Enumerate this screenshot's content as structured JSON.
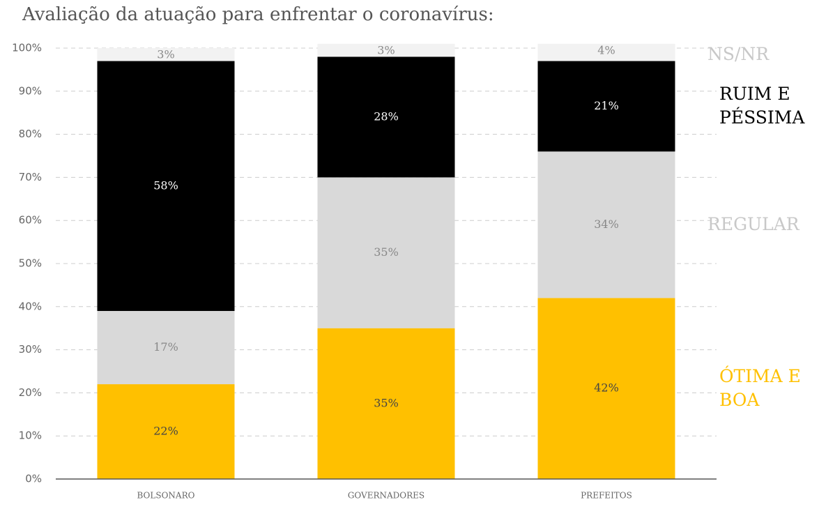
{
  "chart_data": {
    "type": "stacked-bar",
    "title": "Avaliação da atuação para enfrentar o coronavírus:",
    "categories": [
      "BOLSONARO",
      "GOVERNADORES",
      "PREFEITOS"
    ],
    "series": [
      {
        "name": "ÓTIMA E BOA",
        "color": "#ffc000",
        "values": [
          22,
          35,
          42
        ],
        "value_labels": [
          "22%",
          "35%",
          "42%"
        ]
      },
      {
        "name": "REGULAR",
        "color": "#d9d9d9",
        "values": [
          17,
          35,
          34
        ],
        "value_labels": [
          "17%",
          "35%",
          "34%"
        ]
      },
      {
        "name": "RUIM E PÉSSIMA",
        "color": "#000000",
        "values": [
          58,
          28,
          21
        ],
        "value_labels": [
          "58%",
          "28%",
          "21%"
        ]
      },
      {
        "name": "NS/NR",
        "color": "#f2f2f2",
        "values": [
          3,
          3,
          4
        ],
        "value_labels": [
          "3%",
          "3%",
          "4%"
        ]
      }
    ],
    "ylim": [
      0,
      100
    ],
    "yticks": [
      {
        "value": 0,
        "label": "0%"
      },
      {
        "value": 10,
        "label": "10%"
      },
      {
        "value": 20,
        "label": "20%"
      },
      {
        "value": 30,
        "label": "30%"
      },
      {
        "value": 40,
        "label": "40%"
      },
      {
        "value": 50,
        "label": "50%"
      },
      {
        "value": 60,
        "label": "60%"
      },
      {
        "value": 70,
        "label": "70%"
      },
      {
        "value": 80,
        "label": "80%"
      },
      {
        "value": 90,
        "label": "90%"
      },
      {
        "value": 100,
        "label": "100%"
      }
    ],
    "grid": true
  }
}
